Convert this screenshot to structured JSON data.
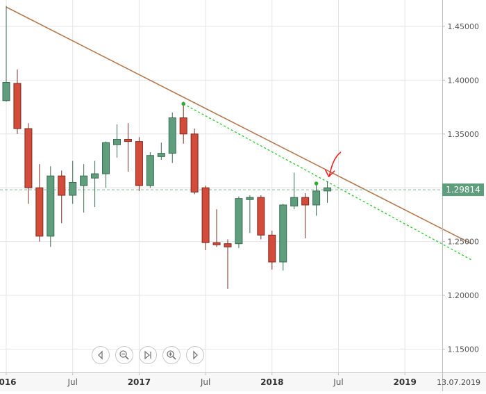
{
  "chart_data": {
    "type": "candlestick",
    "title": "",
    "xlabel": "",
    "ylabel": "",
    "ylim": [
      1.12,
      1.48
    ],
    "grid": true,
    "y_ticks": [
      "1.45000",
      "1.40000",
      "1.35000",
      "1.30000",
      "1.25000",
      "1.20000",
      "1.15000"
    ],
    "x_ticks": [
      "016",
      "Jul",
      "2017",
      "Jul",
      "2018",
      "Jul",
      "2019"
    ],
    "date_label": "13.07.2019",
    "current_price": {
      "value": 1.29814,
      "label": "1.29814"
    },
    "candles": [
      {
        "date": "2016-01",
        "open": 1.381,
        "high": 1.469,
        "low": 1.38,
        "close": 1.398
      },
      {
        "date": "2016-02",
        "open": 1.397,
        "high": 1.41,
        "low": 1.35,
        "close": 1.355
      },
      {
        "date": "2016-03",
        "open": 1.355,
        "high": 1.36,
        "low": 1.285,
        "close": 1.3
      },
      {
        "date": "2016-04",
        "open": 1.3,
        "high": 1.322,
        "low": 1.25,
        "close": 1.255
      },
      {
        "date": "2016-05",
        "open": 1.255,
        "high": 1.32,
        "low": 1.245,
        "close": 1.311
      },
      {
        "date": "2016-06",
        "open": 1.311,
        "high": 1.316,
        "low": 1.267,
        "close": 1.293
      },
      {
        "date": "2016-07",
        "open": 1.293,
        "high": 1.325,
        "low": 1.285,
        "close": 1.305
      },
      {
        "date": "2016-08",
        "open": 1.302,
        "high": 1.322,
        "low": 1.277,
        "close": 1.311
      },
      {
        "date": "2016-09",
        "open": 1.309,
        "high": 1.325,
        "low": 1.282,
        "close": 1.313
      },
      {
        "date": "2016-10",
        "open": 1.313,
        "high": 1.343,
        "low": 1.3,
        "close": 1.342
      },
      {
        "date": "2016-11",
        "open": 1.34,
        "high": 1.359,
        "low": 1.328,
        "close": 1.345
      },
      {
        "date": "2016-12",
        "open": 1.345,
        "high": 1.36,
        "low": 1.315,
        "close": 1.343
      },
      {
        "date": "2017-01",
        "open": 1.343,
        "high": 1.347,
        "low": 1.297,
        "close": 1.302
      },
      {
        "date": "2017-02",
        "open": 1.302,
        "high": 1.333,
        "low": 1.3,
        "close": 1.33
      },
      {
        "date": "2017-03",
        "open": 1.329,
        "high": 1.342,
        "low": 1.326,
        "close": 1.332
      },
      {
        "date": "2017-04",
        "open": 1.332,
        "high": 1.37,
        "low": 1.323,
        "close": 1.365
      },
      {
        "date": "2017-05",
        "open": 1.365,
        "high": 1.38,
        "low": 1.341,
        "close": 1.35
      },
      {
        "date": "2017-06",
        "open": 1.35,
        "high": 1.355,
        "low": 1.294,
        "close": 1.296
      },
      {
        "date": "2017-07",
        "open": 1.3,
        "high": 1.302,
        "low": 1.242,
        "close": 1.249
      },
      {
        "date": "2017-08",
        "open": 1.249,
        "high": 1.28,
        "low": 1.245,
        "close": 1.247
      },
      {
        "date": "2017-09",
        "open": 1.248,
        "high": 1.252,
        "low": 1.206,
        "close": 1.245
      },
      {
        "date": "2017-10",
        "open": 1.248,
        "high": 1.292,
        "low": 1.244,
        "close": 1.29
      },
      {
        "date": "2017-11",
        "open": 1.289,
        "high": 1.293,
        "low": 1.258,
        "close": 1.291
      },
      {
        "date": "2017-12",
        "open": 1.291,
        "high": 1.293,
        "low": 1.252,
        "close": 1.256
      },
      {
        "date": "2018-01",
        "open": 1.256,
        "high": 1.26,
        "low": 1.224,
        "close": 1.231
      },
      {
        "date": "2018-02",
        "open": 1.231,
        "high": 1.285,
        "low": 1.223,
        "close": 1.284
      },
      {
        "date": "2018-03",
        "open": 1.283,
        "high": 1.314,
        "low": 1.28,
        "close": 1.291
      },
      {
        "date": "2018-04",
        "open": 1.291,
        "high": 1.295,
        "low": 1.253,
        "close": 1.284
      },
      {
        "date": "2018-05",
        "open": 1.284,
        "high": 1.303,
        "low": 1.274,
        "close": 1.297
      },
      {
        "date": "2018-06",
        "open": 1.297,
        "high": 1.306,
        "low": 1.286,
        "close": 1.3
      }
    ],
    "trendlines": [
      {
        "from": {
          "date": "2016-01",
          "price": 1.468
        },
        "to": {
          "date": "2019-07",
          "price": 1.248
        },
        "color": "#b57a4f",
        "style": "solid"
      },
      {
        "from": {
          "date": "2017-05",
          "price": 1.378
        },
        "to": {
          "date": "2019-07",
          "price": 1.233
        },
        "color": "#33cc33",
        "style": "dotted"
      }
    ],
    "markers": [
      {
        "date": "2017-05",
        "price": 1.378,
        "color": "#33aa33"
      },
      {
        "date": "2018-05",
        "price": 1.304,
        "color": "#33aa33"
      }
    ],
    "annotations": [
      {
        "type": "arrow",
        "date": "2018-06",
        "price": 1.309,
        "color": "#ee2222"
      }
    ],
    "colors": {
      "bull_fill": "#5f9e7d",
      "bull_edge": "#3a6a50",
      "bear_fill": "#d24b3b",
      "bear_edge": "#7a2a20",
      "grid": "#e4e4e4",
      "price_line": "#7fb69a",
      "price_tag": "#5f9e7d"
    }
  },
  "toolbar": {
    "buttons": [
      {
        "icon": "chevron-left-icon"
      },
      {
        "icon": "zoom-out-icon"
      },
      {
        "icon": "skip-end-icon"
      },
      {
        "icon": "zoom-in-icon"
      },
      {
        "icon": "chevron-right-icon"
      }
    ]
  }
}
